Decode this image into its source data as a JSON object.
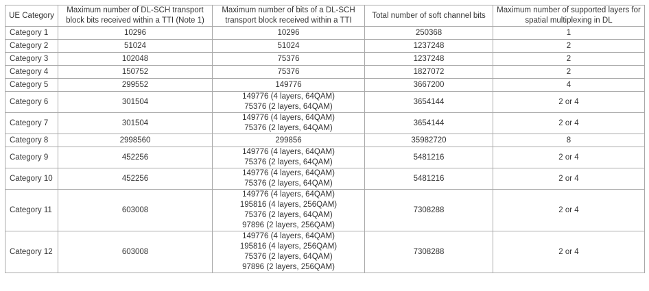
{
  "table": {
    "headers": [
      "UE Category",
      "Maximum number of DL-SCH transport block bits received within a TTI (Note 1)",
      "Maximum number of bits of a DL-SCH transport block received within a TTI",
      "Total number of soft channel bits",
      "Maximum number of supported layers for spatial multiplexing in DL"
    ],
    "rows": [
      {
        "category": "Category 1",
        "max_tb_bits_tti": "10296",
        "max_bits_per_tb": [
          "10296"
        ],
        "soft_channel_bits": "250368",
        "layers": "1"
      },
      {
        "category": "Category 2",
        "max_tb_bits_tti": "51024",
        "max_bits_per_tb": [
          "51024"
        ],
        "soft_channel_bits": "1237248",
        "layers": "2"
      },
      {
        "category": "Category 3",
        "max_tb_bits_tti": "102048",
        "max_bits_per_tb": [
          "75376"
        ],
        "soft_channel_bits": "1237248",
        "layers": "2"
      },
      {
        "category": "Category 4",
        "max_tb_bits_tti": "150752",
        "max_bits_per_tb": [
          "75376"
        ],
        "soft_channel_bits": "1827072",
        "layers": "2"
      },
      {
        "category": "Category 5",
        "max_tb_bits_tti": "299552",
        "max_bits_per_tb": [
          "149776"
        ],
        "soft_channel_bits": "3667200",
        "layers": "4"
      },
      {
        "category": "Category 6",
        "max_tb_bits_tti": "301504",
        "max_bits_per_tb": [
          "149776 (4 layers, 64QAM)",
          "75376 (2 layers, 64QAM)"
        ],
        "soft_channel_bits": "3654144",
        "layers": "2 or 4"
      },
      {
        "category": "Category 7",
        "max_tb_bits_tti": "301504",
        "max_bits_per_tb": [
          "149776 (4 layers, 64QAM)",
          "75376 (2 layers, 64QAM)"
        ],
        "soft_channel_bits": "3654144",
        "layers": "2 or 4"
      },
      {
        "category": "Category 8",
        "max_tb_bits_tti": "2998560",
        "max_bits_per_tb": [
          "299856"
        ],
        "soft_channel_bits": "35982720",
        "layers": "8"
      },
      {
        "category": "Category 9",
        "max_tb_bits_tti": "452256",
        "max_bits_per_tb": [
          "149776 (4 layers, 64QAM)",
          "75376 (2 layers, 64QAM)"
        ],
        "soft_channel_bits": "5481216",
        "layers": "2 or 4"
      },
      {
        "category": "Category 10",
        "max_tb_bits_tti": "452256",
        "max_bits_per_tb": [
          "149776 (4 layers, 64QAM)",
          "75376 (2 layers, 64QAM)"
        ],
        "soft_channel_bits": "5481216",
        "layers": "2 or 4"
      },
      {
        "category": "Category 11",
        "max_tb_bits_tti": "603008",
        "max_bits_per_tb": [
          "149776 (4 layers, 64QAM)",
          "195816 (4 layers, 256QAM)",
          "75376 (2 layers, 64QAM)",
          "97896 (2 layers, 256QAM)"
        ],
        "soft_channel_bits": "7308288",
        "layers": "2 or 4"
      },
      {
        "category": "Category 12",
        "max_tb_bits_tti": "603008",
        "max_bits_per_tb": [
          "149776 (4 layers, 64QAM)",
          "195816 (4 layers, 256QAM)",
          "75376 (2 layers, 64QAM)",
          "97896 (2 layers, 256QAM)"
        ],
        "soft_channel_bits": "7308288",
        "layers": "2 or 4"
      }
    ]
  }
}
